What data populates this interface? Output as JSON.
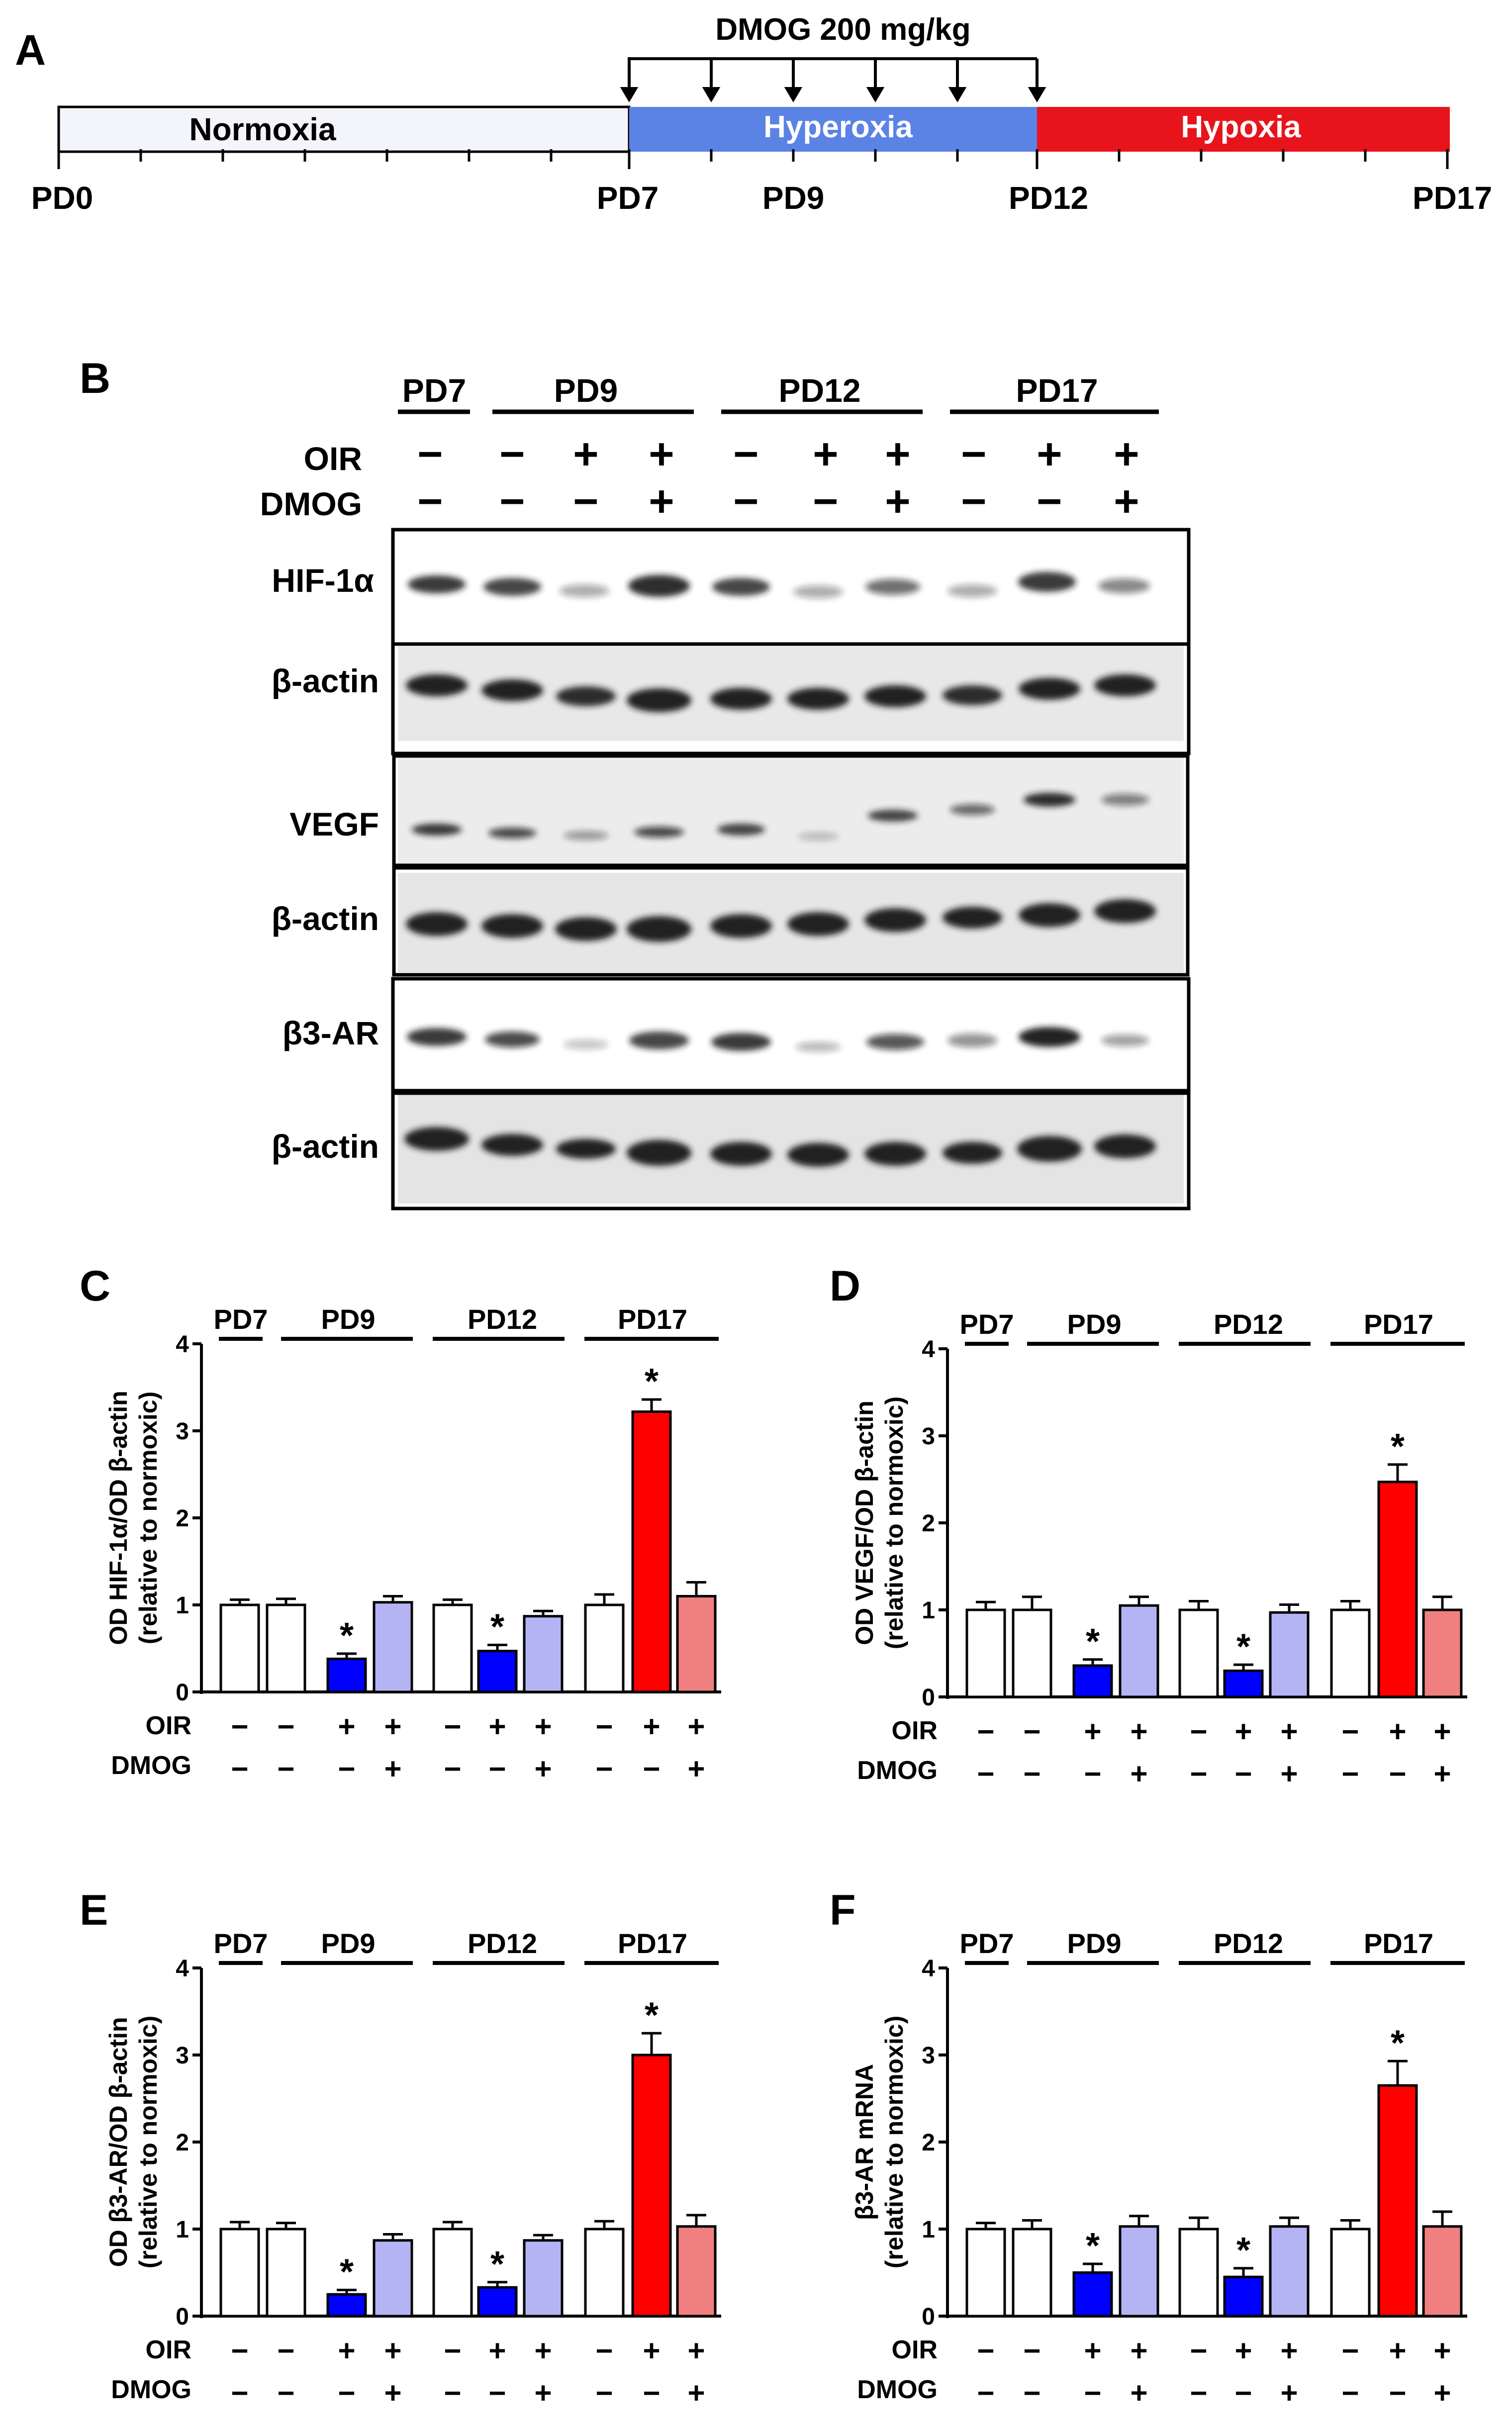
{
  "panel_labels": {
    "A": "A",
    "B": "B",
    "C": "C",
    "D": "D",
    "E": "E",
    "F": "F"
  },
  "timeline": {
    "dose_label": "DMOG 200 mg/kg",
    "phases": [
      {
        "label": "Normoxia",
        "color": "#f4f4fb"
      },
      {
        "label": "Hyperoxia",
        "color": "#5b83e6"
      },
      {
        "label": "Hypoxia",
        "color": "#e8141c"
      }
    ],
    "day_labels": [
      "PD0",
      "PD7",
      "PD9",
      "PD12",
      "PD17"
    ]
  },
  "blot": {
    "timepoints": [
      "PD7",
      "PD9",
      "PD12",
      "PD17"
    ],
    "row_labels": [
      "OIR",
      "DMOG"
    ],
    "oir_signs": [
      "−",
      "−",
      "+",
      "+",
      "−",
      "+",
      "+",
      "−",
      "+",
      "+"
    ],
    "dmog_signs": [
      "−",
      "−",
      "−",
      "+",
      "−",
      "−",
      "+",
      "−",
      "−",
      "+"
    ],
    "proteins": [
      "HIF-1α",
      "β-actin",
      "VEGF",
      "β-actin",
      "β3-AR",
      "β-actin"
    ]
  },
  "colors": {
    "normoxic": "#ffffff",
    "oir_hyperoxia": "#0000ff",
    "dmog_hyperoxia": "#b4b4f5",
    "oir_hypoxia": "#ff0000",
    "dmog_hypoxia": "#f08080"
  },
  "chart_data": [
    {
      "type": "bar",
      "panel": "C",
      "group_labels": [
        "PD7",
        "PD9",
        "PD12",
        "PD17"
      ],
      "y_ticks": [
        "0",
        "1",
        "2",
        "3",
        "4"
      ],
      "ylim": [
        0,
        4
      ],
      "ylabel_line1": "OD HIF-1α/OD β-actin",
      "ylabel_line2": "(relative to normoxic)",
      "row_labels": [
        "OIR",
        "DMOG"
      ],
      "oir": [
        "−",
        "−",
        "+",
        "+",
        "−",
        "+",
        "+",
        "−",
        "+",
        "+"
      ],
      "dmog": [
        "−",
        "−",
        "−",
        "+",
        "−",
        "−",
        "+",
        "−",
        "−",
        "+"
      ],
      "values": [
        1.0,
        1.0,
        0.38,
        1.03,
        1.0,
        0.47,
        0.87,
        1.0,
        3.22,
        1.1
      ],
      "errors": [
        0.06,
        0.07,
        0.06,
        0.07,
        0.06,
        0.07,
        0.06,
        0.12,
        0.14,
        0.16
      ],
      "stars": [
        "",
        "",
        "*",
        "",
        "",
        "*",
        "",
        "",
        "*",
        ""
      ]
    },
    {
      "type": "bar",
      "panel": "D",
      "group_labels": [
        "PD7",
        "PD9",
        "PD12",
        "PD17"
      ],
      "y_ticks": [
        "0",
        "1",
        "2",
        "3",
        "4"
      ],
      "ylim": [
        0,
        4
      ],
      "ylabel_line1": "OD VEGF/OD β-actin",
      "ylabel_line2": "(relative to normoxic)",
      "row_labels": [
        "OIR",
        "DMOG"
      ],
      "oir": [
        "−",
        "−",
        "+",
        "+",
        "−",
        "+",
        "+",
        "−",
        "+",
        "+"
      ],
      "dmog": [
        "−",
        "−",
        "−",
        "+",
        "−",
        "−",
        "+",
        "−",
        "−",
        "+"
      ],
      "values": [
        1.0,
        1.0,
        0.36,
        1.05,
        1.0,
        0.3,
        0.97,
        1.0,
        2.47,
        1.0
      ],
      "errors": [
        0.09,
        0.15,
        0.07,
        0.1,
        0.1,
        0.07,
        0.09,
        0.1,
        0.2,
        0.15
      ],
      "stars": [
        "",
        "",
        "*",
        "",
        "",
        "*",
        "",
        "",
        "*",
        ""
      ]
    },
    {
      "type": "bar",
      "panel": "E",
      "group_labels": [
        "PD7",
        "PD9",
        "PD12",
        "PD17"
      ],
      "y_ticks": [
        "0",
        "1",
        "2",
        "3",
        "4"
      ],
      "ylim": [
        0,
        4
      ],
      "ylabel_line1": "OD β3-AR/OD β-actin",
      "ylabel_line2": "(relative to normoxic)",
      "row_labels": [
        "OIR",
        "DMOG"
      ],
      "oir": [
        "−",
        "−",
        "+",
        "+",
        "−",
        "+",
        "+",
        "−",
        "+",
        "+"
      ],
      "dmog": [
        "−",
        "−",
        "−",
        "+",
        "−",
        "−",
        "+",
        "−",
        "−",
        "+"
      ],
      "values": [
        1.0,
        1.0,
        0.25,
        0.87,
        1.0,
        0.33,
        0.87,
        1.0,
        3.0,
        1.03
      ],
      "errors": [
        0.08,
        0.07,
        0.05,
        0.07,
        0.08,
        0.06,
        0.06,
        0.09,
        0.25,
        0.13
      ],
      "stars": [
        "",
        "",
        "*",
        "",
        "",
        "*",
        "",
        "",
        "*",
        ""
      ]
    },
    {
      "type": "bar",
      "panel": "F",
      "group_labels": [
        "PD7",
        "PD9",
        "PD12",
        "PD17"
      ],
      "y_ticks": [
        "0",
        "1",
        "2",
        "3",
        "4"
      ],
      "ylim": [
        0,
        4
      ],
      "ylabel_line1": "β3-AR mRNA",
      "ylabel_line2": "(relative to normoxic)",
      "row_labels": [
        "OIR",
        "DMOG"
      ],
      "oir": [
        "−",
        "−",
        "+",
        "+",
        "−",
        "+",
        "+",
        "−",
        "+",
        "+"
      ],
      "dmog": [
        "−",
        "−",
        "−",
        "+",
        "−",
        "−",
        "+",
        "−",
        "−",
        "+"
      ],
      "values": [
        1.0,
        1.0,
        0.5,
        1.03,
        1.0,
        0.45,
        1.03,
        1.0,
        2.65,
        1.03
      ],
      "errors": [
        0.07,
        0.1,
        0.1,
        0.12,
        0.13,
        0.1,
        0.1,
        0.1,
        0.28,
        0.17
      ],
      "stars": [
        "",
        "",
        "*",
        "",
        "",
        "*",
        "",
        "",
        "*",
        ""
      ]
    }
  ]
}
